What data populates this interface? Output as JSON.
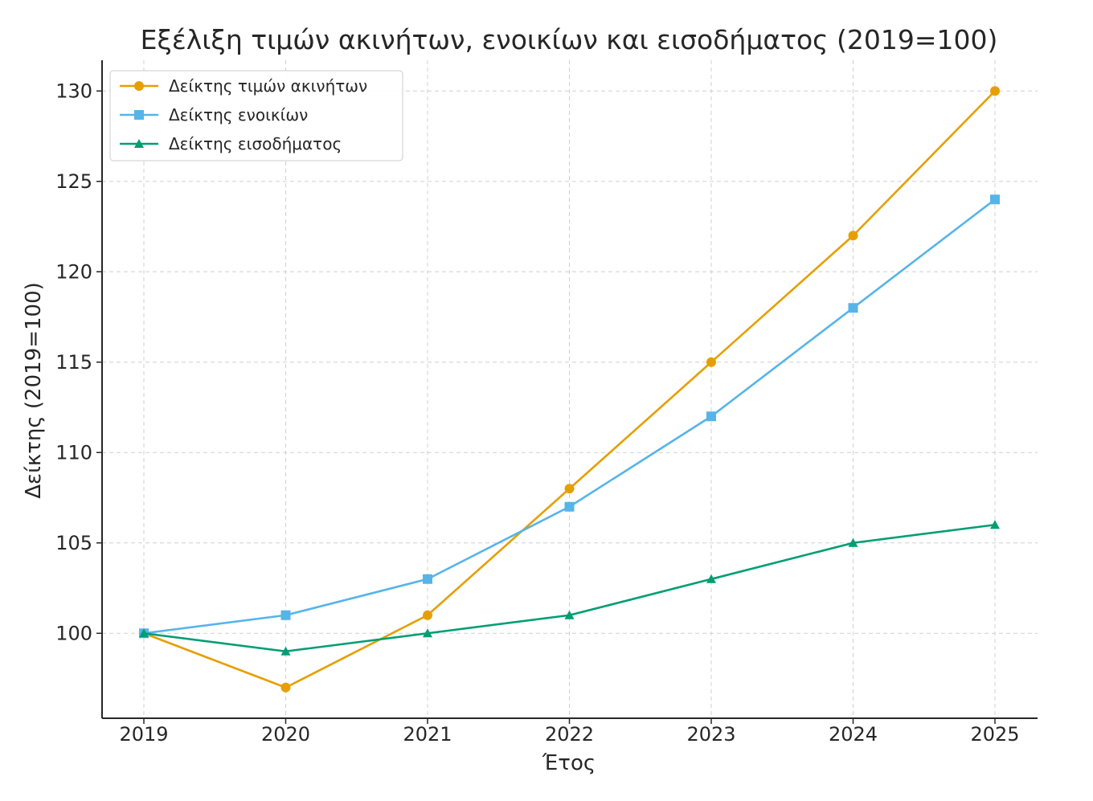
{
  "chart_data": {
    "type": "line",
    "title": "Εξέλιξη τιμών ακινήτων, ενοικίων και εισοδήματος (2019=100)",
    "xlabel": "Έτος",
    "ylabel": "Δείκτης (2019=100)",
    "x": [
      "2019",
      "2020",
      "2021",
      "2022",
      "2023",
      "2024",
      "2025"
    ],
    "ylim": [
      95.3,
      131.7
    ],
    "yticks": [
      "100",
      "105",
      "110",
      "115",
      "120",
      "125",
      "130"
    ],
    "grid": true,
    "legend_position": "top-left",
    "series": [
      {
        "name": "Δείκτης τιμών ακινήτων",
        "color": "#E69F00",
        "marker": "circle",
        "values": [
          100,
          97,
          101,
          108,
          115,
          122,
          130
        ]
      },
      {
        "name": "Δείκτης ενοικίων",
        "color": "#56B4E9",
        "marker": "square",
        "values": [
          100,
          101,
          103,
          107,
          112,
          118,
          124
        ]
      },
      {
        "name": "Δείκτης εισοδήματος",
        "color": "#009E73",
        "marker": "triangle",
        "values": [
          100,
          99,
          100,
          101,
          103,
          105,
          106
        ]
      }
    ]
  }
}
